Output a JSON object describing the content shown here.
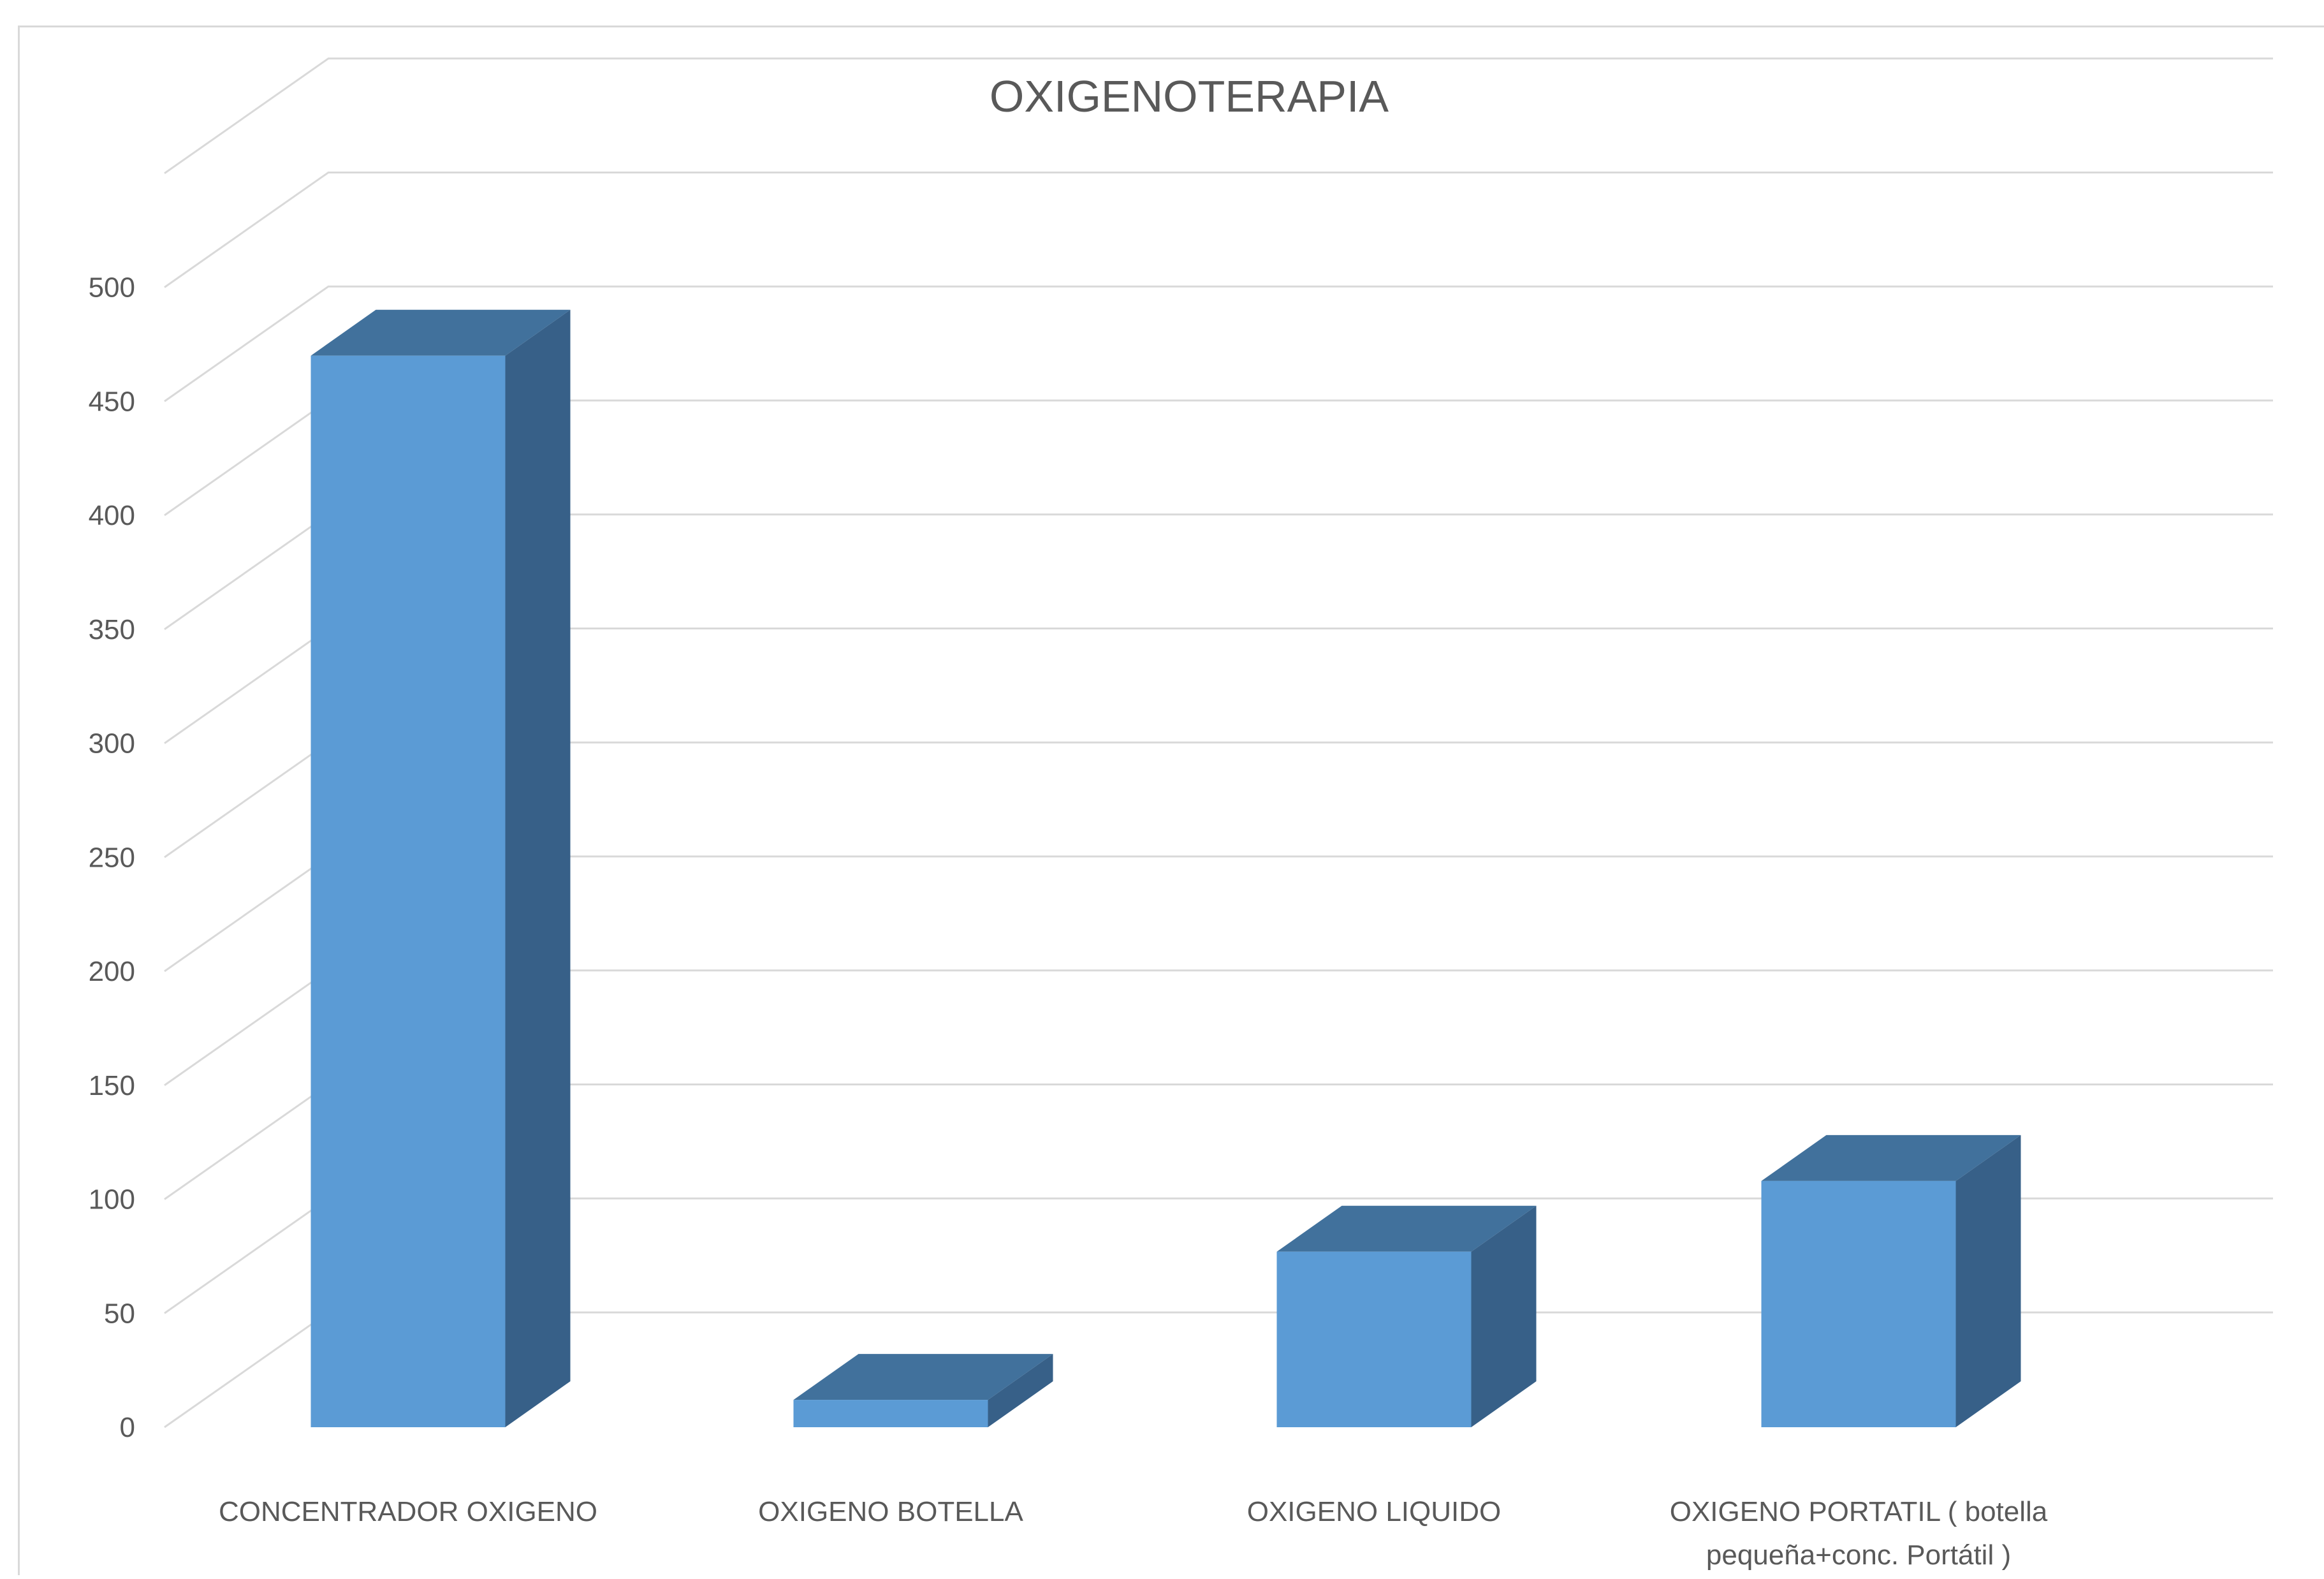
{
  "chart_data": {
    "type": "bar",
    "title": "OXIGENOTERAPIA",
    "categories": [
      [
        "CONCENTRADOR OXIGENO"
      ],
      [
        "OXIGENO BOTELLA"
      ],
      [
        "OXIGENO LIQUIDO"
      ],
      [
        "OXIGENO PORTATIL ( botella",
        "pequeña+conc. Portátil )"
      ]
    ],
    "values": [
      470,
      12,
      77,
      108
    ],
    "yticks": [
      "0",
      "50",
      "100",
      "150",
      "200",
      "250",
      "300",
      "350",
      "400",
      "450",
      "500"
    ],
    "ylim": [
      0,
      550
    ],
    "grid": true,
    "legend": "none",
    "colors": {
      "front": "#5b9bd5",
      "top": "#41719c",
      "side": "#376088",
      "grid": "#d9d9d9",
      "text": "#595959"
    }
  }
}
